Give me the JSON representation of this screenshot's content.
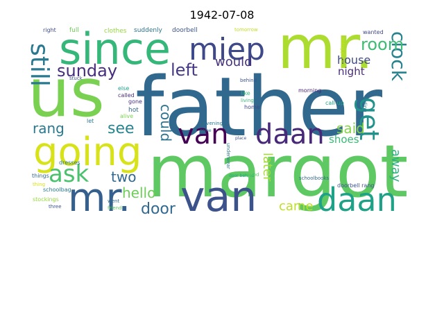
{
  "title": "1942-07-08",
  "background": "#ffffff",
  "words": [
    {
      "text": "father",
      "color": "#31688e"
    },
    {
      "text": "margot",
      "color": "#5ec962"
    },
    {
      "text": "us",
      "color": "#7ad151"
    },
    {
      "text": "mr.",
      "color": "#addc30"
    },
    {
      "text": "since",
      "color": "#35b779"
    },
    {
      "text": "van",
      "color": "#3b528b"
    },
    {
      "text": "mr.",
      "color": "#355f8d"
    },
    {
      "text": "going",
      "color": "#d8e219"
    },
    {
      "text": "miep",
      "color": "#3e4989"
    },
    {
      "text": "daan",
      "color": "#1fa187"
    },
    {
      "text": "van",
      "color": "#440154"
    },
    {
      "text": "daan",
      "color": "#482878"
    },
    {
      "text": "still",
      "color": "#2a788e"
    },
    {
      "text": "get",
      "color": "#21918c"
    },
    {
      "text": "clock",
      "color": "#26828e"
    },
    {
      "text": "sunday",
      "color": "#472d7b"
    },
    {
      "text": "ask",
      "color": "#4ac16d"
    },
    {
      "text": "left",
      "color": "#443983"
    },
    {
      "text": "room",
      "color": "#3dbc74"
    },
    {
      "text": "could",
      "color": "#2c728e"
    },
    {
      "text": "hello",
      "color": "#6ece58"
    },
    {
      "text": "door",
      "color": "#31688e"
    },
    {
      "text": "rang",
      "color": "#2a788e"
    },
    {
      "text": "see",
      "color": "#25848e"
    },
    {
      "text": "two",
      "color": "#31688e"
    },
    {
      "text": "said",
      "color": "#86d549"
    },
    {
      "text": "away",
      "color": "#2db27d"
    },
    {
      "text": "would",
      "color": "#46327e"
    },
    {
      "text": "house",
      "color": "#3e4a89"
    },
    {
      "text": "night",
      "color": "#472c7a"
    },
    {
      "text": "shoes",
      "color": "#3aba76"
    },
    {
      "text": "later",
      "color": "#a5db36"
    },
    {
      "text": "came",
      "color": "#bddf26"
    },
    {
      "text": "full",
      "color": "#6ece58"
    },
    {
      "text": "clothes",
      "color": "#95d840"
    },
    {
      "text": "suddenly",
      "color": "#2c738e"
    },
    {
      "text": "doorbell",
      "color": "#3b528b"
    },
    {
      "text": "tomorrow",
      "color": "#c2df23"
    },
    {
      "text": "wanted",
      "color": "#3f4788"
    },
    {
      "text": "right",
      "color": "#3e4a89"
    },
    {
      "text": "behind",
      "color": "#3b528b"
    },
    {
      "text": "morning",
      "color": "#482475"
    },
    {
      "text": "hiding place",
      "color": "#c8e020"
    },
    {
      "text": "stuck",
      "color": "#3a548c"
    },
    {
      "text": "else",
      "color": "#1f9e89"
    },
    {
      "text": "called",
      "color": "#472f7d"
    },
    {
      "text": "gone",
      "color": "#46327e"
    },
    {
      "text": "hot",
      "color": "#31688e"
    },
    {
      "text": "alive",
      "color": "#7ad151"
    },
    {
      "text": "let",
      "color": "#2a788e"
    },
    {
      "text": "like",
      "color": "#35b779"
    },
    {
      "text": "living",
      "color": "#35b779"
    },
    {
      "text": "home",
      "color": "#3f4788"
    },
    {
      "text": "call-up",
      "color": "#20a486"
    },
    {
      "text": "evening",
      "color": "#2a778e"
    },
    {
      "text": "come",
      "color": "#2a788e"
    },
    {
      "text": "place",
      "color": "#3b528b"
    },
    {
      "text": "hiding",
      "color": "#287d8e"
    },
    {
      "text": "dresses",
      "color": "#2a788e"
    },
    {
      "text": "things",
      "color": "#31688e"
    },
    {
      "text": "thing",
      "color": "#d8e219"
    },
    {
      "text": "schoolbag",
      "color": "#2a788e"
    },
    {
      "text": "stockings",
      "color": "#95d840"
    },
    {
      "text": "three",
      "color": "#3b528b"
    },
    {
      "text": "went",
      "color": "#31688e"
    },
    {
      "text": "friend",
      "color": "#5ec962"
    },
    {
      "text": "underwear",
      "color": "#2a788e"
    },
    {
      "text": "door behind",
      "color": "#20a486"
    },
    {
      "text": "good",
      "color": "#5ec962"
    },
    {
      "text": "schoolbooks",
      "color": "#31688e"
    },
    {
      "text": "doorbell rang",
      "color": "#3b528b"
    }
  ]
}
